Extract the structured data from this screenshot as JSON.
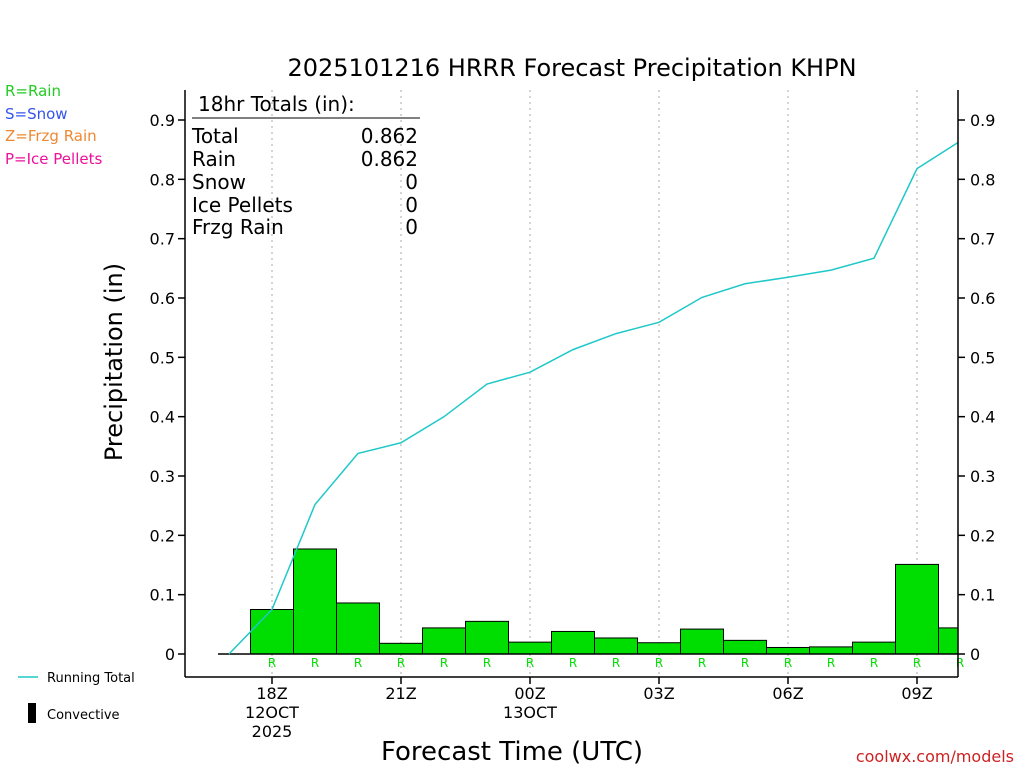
{
  "chart_data": {
    "type": "bar",
    "title": "2025101216 HRRR Forecast Precipitation KHPN",
    "xlabel": "Forecast Time (UTC)",
    "ylabel": "Precipitation (in)",
    "ylim": [
      0,
      0.95
    ],
    "yticks": [
      0,
      0.1,
      0.2,
      0.3,
      0.4,
      0.5,
      0.6,
      0.7,
      0.8,
      0.9
    ],
    "ytick_labels": [
      "0",
      "0.1",
      "0.2",
      "0.3",
      "0.4",
      "0.5",
      "0.6",
      "0.7",
      "0.8",
      "0.9"
    ],
    "x_range_hours": [
      16.6,
      34.0
    ],
    "grid": "vertical dotted at labeled hours",
    "xticks": [
      {
        "hour": 18,
        "lines": [
          "18Z",
          "12OCT",
          "2025"
        ]
      },
      {
        "hour": 21,
        "lines": [
          "21Z"
        ]
      },
      {
        "hour": 24,
        "lines": [
          "00Z",
          "13OCT"
        ]
      },
      {
        "hour": 27,
        "lines": [
          "03Z"
        ]
      },
      {
        "hour": 30,
        "lines": [
          "06Z"
        ]
      },
      {
        "hour": 33,
        "lines": [
          "09Z"
        ]
      }
    ],
    "series": [
      {
        "name": "Running Total",
        "kind": "line",
        "color": "#1fc8c8",
        "x": [
          17.0,
          18.0,
          19.0,
          20.0,
          21.0,
          22.0,
          23.0,
          24.0,
          25.0,
          26.0,
          27.0,
          28.0,
          29.0,
          30.0,
          31.0,
          32.0,
          33.0,
          34.0
        ],
        "values": [
          0.0,
          0.075,
          0.252,
          0.338,
          0.356,
          0.4,
          0.455,
          0.475,
          0.513,
          0.54,
          0.559,
          0.601,
          0.624,
          0.635,
          0.647,
          0.667,
          0.818,
          0.862
        ]
      },
      {
        "name": "Rain",
        "kind": "bar",
        "color": "#00dd00",
        "x": [
          18,
          19,
          20,
          21,
          22,
          23,
          24,
          25,
          26,
          27,
          28,
          29,
          30,
          31,
          32,
          33,
          34
        ],
        "values": [
          0.075,
          0.177,
          0.086,
          0.018,
          0.044,
          0.055,
          0.02,
          0.038,
          0.027,
          0.019,
          0.042,
          0.023,
          0.011,
          0.012,
          0.02,
          0.151,
          0.044
        ]
      }
    ],
    "type_markers": {
      "symbol": "R",
      "color": "#00dd00",
      "hours": [
        18,
        19,
        20,
        21,
        22,
        23,
        24,
        25,
        26,
        27,
        28,
        29,
        30,
        31,
        32,
        33,
        34
      ]
    }
  },
  "totals": {
    "header": "18hr Totals (in):",
    "rows": [
      {
        "label": "Total",
        "value": "0.862"
      },
      {
        "label": "Rain",
        "value": "0.862"
      },
      {
        "label": "Snow",
        "value": "0"
      },
      {
        "label": "Ice Pellets",
        "value": "0"
      },
      {
        "label": "Frzg Rain",
        "value": "0"
      }
    ]
  },
  "precip_type_legend": [
    {
      "text": "R=Rain",
      "color": "#22cc22"
    },
    {
      "text": "S=Snow",
      "color": "#3355ee"
    },
    {
      "text": "Z=Frzg Rain",
      "color": "#ee8833"
    },
    {
      "text": "P=Ice Pellets",
      "color": "#ee1199"
    }
  ],
  "series_legend": {
    "running_total": "Running Total",
    "convective": "Convective"
  },
  "footer": {
    "site": "coolwx.com/models",
    "color": "#cc2222"
  }
}
